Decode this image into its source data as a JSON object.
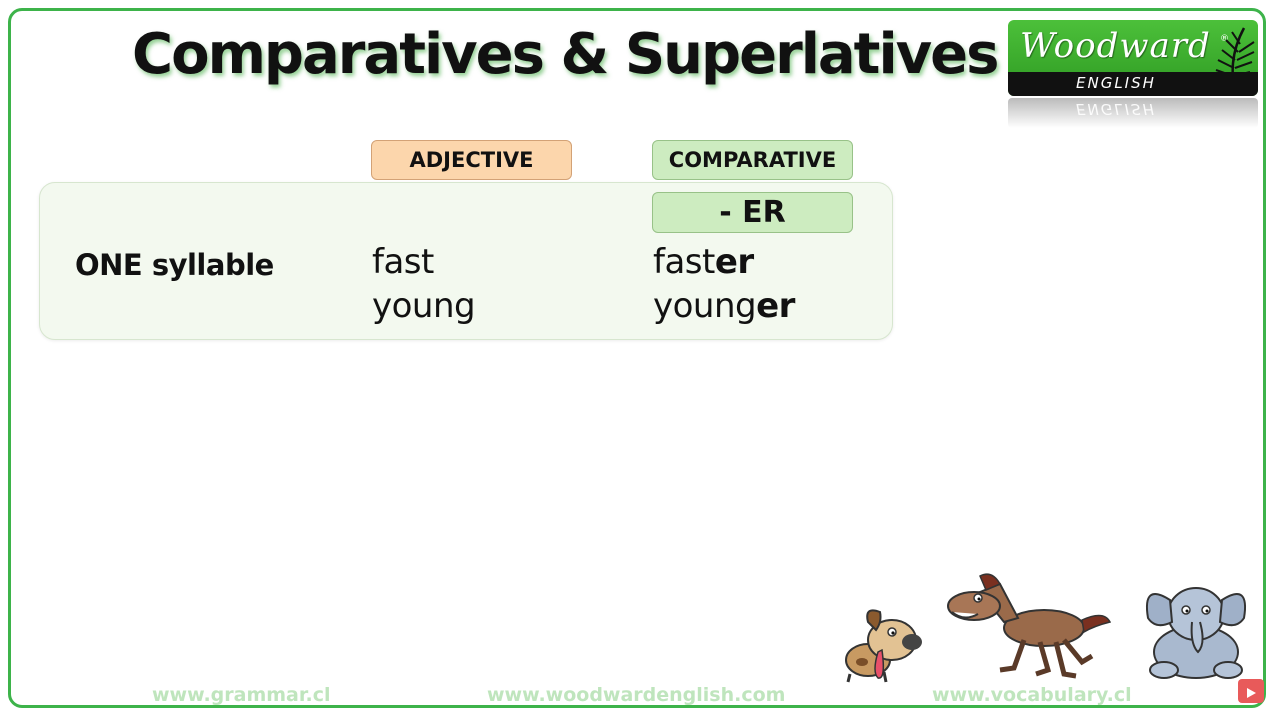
{
  "slide": {
    "title": "Comparatives & Superlatives"
  },
  "logo": {
    "brand": "Woodward",
    "registered": "®",
    "sub": "ENGLISH",
    "reflection": "ENGLISH"
  },
  "table": {
    "headers": {
      "adjective": "ADJECTIVE",
      "comparative": "COMPARATIVE"
    },
    "rule": "- ER",
    "row_label": "ONE syllable",
    "rows": [
      {
        "adjective": "fast",
        "comparative_stem": "fast",
        "comparative_suffix": "er"
      },
      {
        "adjective": "young",
        "comparative_stem": "young",
        "comparative_suffix": "er"
      }
    ]
  },
  "footer": {
    "left": "www.grammar.cl",
    "center": "www.woodwardenglish.com",
    "right": "www.vocabulary.cl"
  },
  "icons": {
    "youtube": "youtube-icon",
    "dog": "dog-illustration",
    "horse": "horse-illustration",
    "elephant": "elephant-illustration"
  },
  "colors": {
    "frame": "#3db34a",
    "adjective_header": "#fcd6ac",
    "comparative_header": "#cdecc0",
    "panel": "#f3f9ef",
    "footer_text": "#bfe5bd"
  }
}
